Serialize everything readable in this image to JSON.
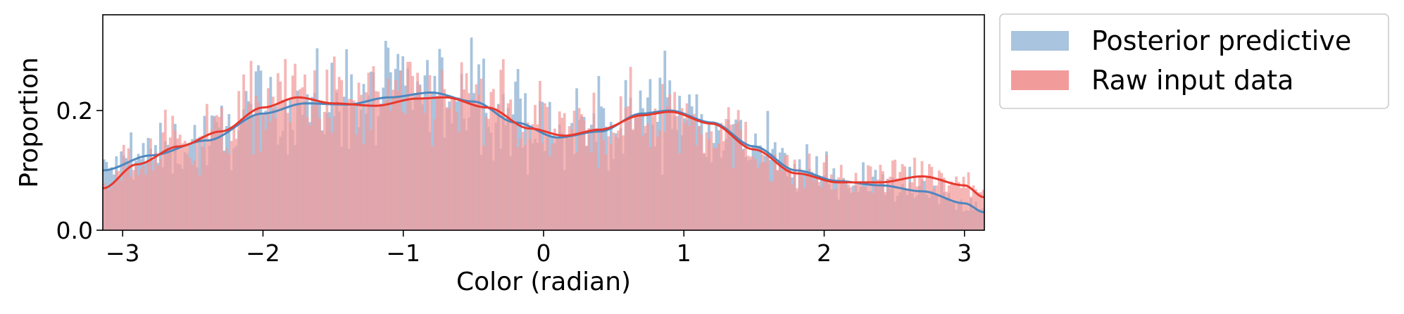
{
  "chart_data": {
    "type": "bar",
    "title": "",
    "xlabel": "Color (radian)",
    "ylabel": "Proportion",
    "xlim": [
      -3.14159,
      3.14159
    ],
    "ylim": [
      0,
      0.36
    ],
    "xticks": [
      {
        "value": -3,
        "label": "−3"
      },
      {
        "value": -2,
        "label": "−2"
      },
      {
        "value": -1,
        "label": "−1"
      },
      {
        "value": 0,
        "label": "0"
      },
      {
        "value": 1,
        "label": "1"
      },
      {
        "value": 2,
        "label": "2"
      },
      {
        "value": 3,
        "label": "3"
      }
    ],
    "yticks": [
      {
        "value": 0.0,
        "label": "0.0"
      },
      {
        "value": 0.2,
        "label": "0.2"
      }
    ],
    "grid": false,
    "legend_position": "outside-top-right",
    "bins": 360,
    "series": [
      {
        "name": "Posterior predictive",
        "color": "#4f86bd",
        "bar_color": "#a8c4de",
        "density_x": [
          -3.14,
          -2.8,
          -2.4,
          -2.0,
          -1.7,
          -1.4,
          -1.1,
          -0.8,
          -0.5,
          -0.2,
          0.1,
          0.4,
          0.7,
          0.9,
          1.2,
          1.5,
          1.8,
          2.1,
          2.4,
          2.7,
          3.0,
          3.14
        ],
        "density_y": [
          0.1,
          0.125,
          0.15,
          0.195,
          0.212,
          0.21,
          0.222,
          0.23,
          0.215,
          0.18,
          0.155,
          0.165,
          0.195,
          0.2,
          0.18,
          0.14,
          0.1,
          0.082,
          0.075,
          0.065,
          0.045,
          0.03
        ]
      },
      {
        "name": "Raw input data",
        "color": "#e8382c",
        "bar_color": "#f29b9b",
        "density_x": [
          -3.14,
          -2.9,
          -2.6,
          -2.3,
          -2.0,
          -1.75,
          -1.5,
          -1.2,
          -0.9,
          -0.7,
          -0.4,
          -0.1,
          0.15,
          0.4,
          0.7,
          0.9,
          1.2,
          1.5,
          1.8,
          2.1,
          2.4,
          2.7,
          3.0,
          3.14
        ],
        "density_y": [
          0.07,
          0.11,
          0.14,
          0.165,
          0.205,
          0.222,
          0.212,
          0.208,
          0.22,
          0.222,
          0.205,
          0.17,
          0.158,
          0.168,
          0.192,
          0.198,
          0.178,
          0.135,
          0.095,
          0.08,
          0.08,
          0.09,
          0.075,
          0.055
        ]
      }
    ]
  },
  "legend": {
    "items": [
      {
        "label": "Posterior predictive",
        "swatch_color": "#a8c4de"
      },
      {
        "label": "Raw input data",
        "swatch_color": "#f29b9b"
      }
    ]
  }
}
